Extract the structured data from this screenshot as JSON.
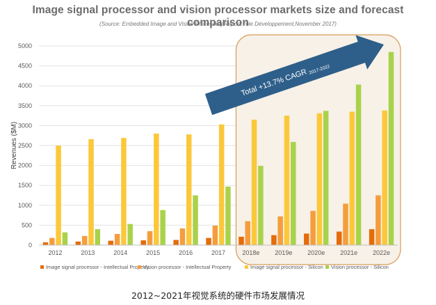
{
  "chart_data": {
    "type": "bar",
    "title": "Image signal processor and vision processor markets size and forecast comparison",
    "subtitle": "(Source: Embedded Image and Vision Processing Report,Yole Développement,November 2017)",
    "ylabel": "Revenues ($M)",
    "xlabel": "",
    "ylim": [
      0,
      5000
    ],
    "yticks": [
      0,
      500,
      1000,
      1500,
      2000,
      2500,
      3000,
      3500,
      4000,
      4500,
      5000
    ],
    "grid": true,
    "legend_position": "bottom",
    "categories": [
      "2012",
      "2013",
      "2014",
      "2015",
      "2016",
      "2017",
      "2018e",
      "2019e",
      "2020e",
      "2021e",
      "2022e"
    ],
    "series": [
      {
        "name": "Image signal processor - Intellectual Property",
        "color": "#e46c0a",
        "values": [
          70,
          90,
          110,
          120,
          130,
          180,
          210,
          250,
          290,
          340,
          400
        ]
      },
      {
        "name": "Vision processor - Intellectual Property",
        "color": "#f59d3d",
        "values": [
          180,
          230,
          280,
          350,
          420,
          490,
          600,
          720,
          860,
          1040,
          1250
        ]
      },
      {
        "name": "Image signal processor - Silicon",
        "color": "#fcc83a",
        "values": [
          2500,
          2660,
          2690,
          2800,
          2780,
          3030,
          3150,
          3250,
          3310,
          3350,
          3380
        ]
      },
      {
        "name": "Vision processor - Silicon",
        "color": "#a9d24b",
        "values": [
          320,
          400,
          530,
          880,
          1250,
          1470,
          1990,
          2590,
          3370,
          4030,
          4850
        ]
      }
    ],
    "annotation": {
      "text": "Total +13.7% CAGR",
      "subscript": "2017-2022",
      "arrow_color": "#2e5f8a",
      "highlight_categories": [
        "2018e",
        "2019e",
        "2020e",
        "2021e",
        "2022e"
      ]
    }
  },
  "caption": "2012~2021年视觉系统的硬件市场发展情况"
}
